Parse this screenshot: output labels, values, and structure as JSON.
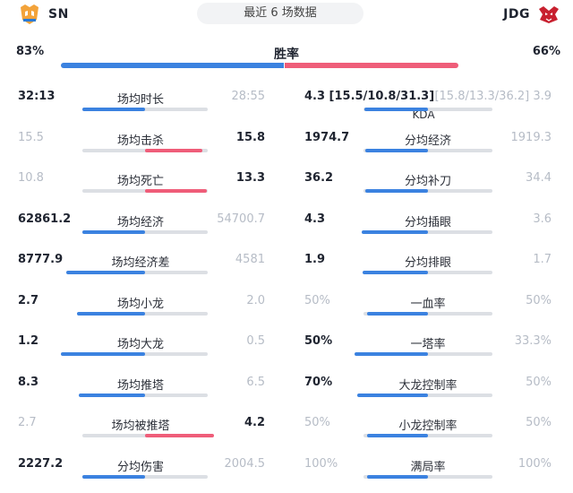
{
  "header": {
    "left_team": "SN",
    "right_team": "JDG",
    "title": "最近 6 场数据",
    "left_logo": "sn-logo-icon",
    "right_logo": "jdg-logo-icon"
  },
  "win_rate": {
    "label": "胜率",
    "left": "83%",
    "right": "66%",
    "left_value": 83,
    "right_value": 66
  },
  "colors": {
    "blue": "#3b82e0",
    "red": "#ef5d79",
    "track": "#dcdfe4",
    "dim": "#b6bcc6"
  },
  "left_stats": [
    {
      "label": "场均时长",
      "left": "32:13",
      "right": "28:55",
      "winner": "left",
      "share": 0.53
    },
    {
      "label": "场均击杀",
      "left": "15.5",
      "right": "15.8",
      "winner": "right",
      "share": 0.49
    },
    {
      "label": "场均死亡",
      "left": "10.8",
      "right": "13.3",
      "winner": "right",
      "share": 0.45
    },
    {
      "label": "场均经济",
      "left": "62861.2",
      "right": "54700.7",
      "winner": "left",
      "share": 0.53
    },
    {
      "label": "场均经济差",
      "left": "8777.9",
      "right": "4581",
      "winner": "left",
      "share": 0.66
    },
    {
      "label": "场均小龙",
      "left": "2.7",
      "right": "2.0",
      "winner": "left",
      "share": 0.57
    },
    {
      "label": "场均大龙",
      "left": "1.2",
      "right": "0.5",
      "winner": "left",
      "share": 0.71
    },
    {
      "label": "场均推塔",
      "left": "8.3",
      "right": "6.5",
      "winner": "left",
      "share": 0.56
    },
    {
      "label": "场均被推塔",
      "left": "2.7",
      "right": "4.2",
      "winner": "right",
      "share": 0.39
    },
    {
      "label": "分均伤害",
      "left": "2227.2",
      "right": "2004.5",
      "winner": "left",
      "share": 0.53
    }
  ],
  "right_stats": [
    {
      "label": "",
      "sublabel": "KDA",
      "left": "4.3 [15.5/10.8/31.3]",
      "right": "[15.8/13.3/36.2] 3.9",
      "winner": "left",
      "share": 0.52
    },
    {
      "label": "分均经济",
      "left": "1974.7",
      "right": "1919.3",
      "winner": "left",
      "share": 0.51
    },
    {
      "label": "分均补刀",
      "left": "36.2",
      "right": "34.4",
      "winner": "left",
      "share": 0.51
    },
    {
      "label": "分均插眼",
      "left": "4.3",
      "right": "3.6",
      "winner": "left",
      "share": 0.54
    },
    {
      "label": "分均排眼",
      "left": "1.9",
      "right": "1.7",
      "winner": "left",
      "share": 0.53
    },
    {
      "label": "一血率",
      "left": "50%",
      "right": "50%",
      "winner": "none",
      "share": 0.5
    },
    {
      "label": "一塔率",
      "left": "50%",
      "right": "33.3%",
      "winner": "left",
      "share": 0.6
    },
    {
      "label": "大龙控制率",
      "left": "70%",
      "right": "50%",
      "winner": "left",
      "share": 0.58
    },
    {
      "label": "小龙控制率",
      "left": "50%",
      "right": "50%",
      "winner": "none",
      "share": 0.5
    },
    {
      "label": "满局率",
      "left": "100%",
      "right": "100%",
      "winner": "none",
      "share": 0.5
    }
  ]
}
